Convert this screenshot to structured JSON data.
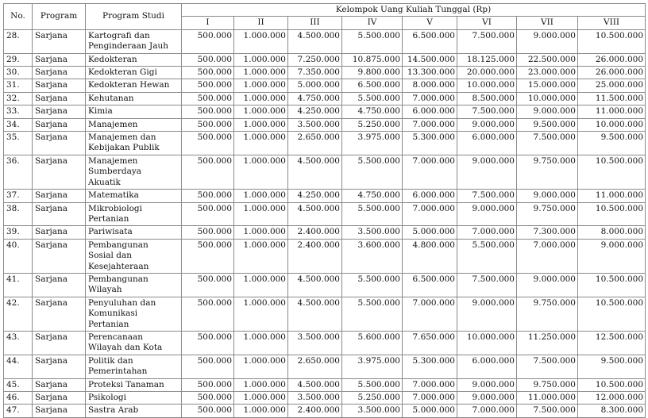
{
  "header": {
    "no": "No.",
    "program": "Program",
    "program_studi": "Program Studi",
    "group_title": "Kelompok Uang Kuliah Tunggal (Rp)",
    "groups": [
      "I",
      "II",
      "III",
      "IV",
      "V",
      "VI",
      "VII",
      "VIII"
    ]
  },
  "rows": [
    {
      "no": "28.",
      "program": "Sarjana",
      "studi": [
        "Kartografi dan",
        "Penginderaan Jauh"
      ],
      "values": [
        "500.000",
        "1.000.000",
        "4.500.000",
        "5.500.000",
        "6.500.000",
        "7.500.000",
        "9.000.000",
        "10.500.000"
      ]
    },
    {
      "no": "29.",
      "program": "Sarjana",
      "studi": [
        "Kedokteran"
      ],
      "values": [
        "500.000",
        "1.000.000",
        "7.250.000",
        "10.875.000",
        "14.500.000",
        "18.125.000",
        "22.500.000",
        "26.000.000"
      ]
    },
    {
      "no": "30.",
      "program": "Sarjana",
      "studi": [
        "Kedokteran Gigi"
      ],
      "values": [
        "500.000",
        "1.000.000",
        "7.350.000",
        "9.800.000",
        "13.300.000",
        "20.000.000",
        "23.000.000",
        "26.000.000"
      ]
    },
    {
      "no": "31.",
      "program": "Sarjana",
      "studi": [
        "Kedokteran Hewan"
      ],
      "values": [
        "500.000",
        "1.000.000",
        "5.000.000",
        "6.500.000",
        "8.000.000",
        "10.000.000",
        "15.000.000",
        "25.000.000"
      ]
    },
    {
      "no": "32.",
      "program": "Sarjana",
      "studi": [
        "Kehutanan"
      ],
      "values": [
        "500.000",
        "1.000.000",
        "4.750.000",
        "5.500.000",
        "7.000.000",
        "8.500.000",
        "10.000.000",
        "11.500.000"
      ]
    },
    {
      "no": "33.",
      "program": "Sarjana",
      "studi": [
        "Kimia"
      ],
      "values": [
        "500.000",
        "1.000.000",
        "4.250.000",
        "4.750.000",
        "6.000.000",
        "7.500.000",
        "9.000.000",
        "11.000.000"
      ]
    },
    {
      "no": "34.",
      "program": "Sarjana",
      "studi": [
        "Manajemen"
      ],
      "values": [
        "500.000",
        "1.000.000",
        "3.500.000",
        "5.250.000",
        "7.000.000",
        "9.000.000",
        "9.500.000",
        "10.000.000"
      ]
    },
    {
      "no": "35.",
      "program": "Sarjana",
      "studi": [
        "Manajemen dan",
        "Kebijakan Publik"
      ],
      "values": [
        "500.000",
        "1.000.000",
        "2.650.000",
        "3.975.000",
        "5.300.000",
        "6.000.000",
        "7.500.000",
        "9.500.000"
      ]
    },
    {
      "no": "36.",
      "program": "Sarjana",
      "studi": [
        "Manajemen",
        "Sumberdaya",
        "Akuatik"
      ],
      "values": [
        "500.000",
        "1.000.000",
        "4.500.000",
        "5.500.000",
        "7.000.000",
        "9.000.000",
        "9.750.000",
        "10.500.000"
      ]
    },
    {
      "no": "37.",
      "program": "Sarjana",
      "studi": [
        "Matematika"
      ],
      "values": [
        "500.000",
        "1.000.000",
        "4.250.000",
        "4.750.000",
        "6.000.000",
        "7.500.000",
        "9.000.000",
        "11.000.000"
      ]
    },
    {
      "no": "38.",
      "program": "Sarjana",
      "studi": [
        "Mikrobiologi",
        "Pertanian"
      ],
      "values": [
        "500.000",
        "1.000.000",
        "4.500.000",
        "5.500.000",
        "7.000.000",
        "9.000.000",
        "9.750.000",
        "10.500.000"
      ]
    },
    {
      "no": "39.",
      "program": "Sarjana",
      "studi": [
        "Pariwisata"
      ],
      "values": [
        "500.000",
        "1.000.000",
        "2.400.000",
        "3.500.000",
        "5.000.000",
        "7.000.000",
        "7.300.000",
        "8.000.000"
      ]
    },
    {
      "no": "40.",
      "program": "Sarjana",
      "studi": [
        "Pembangunan",
        "Sosial dan",
        "Kesejahteraan"
      ],
      "values": [
        "500.000",
        "1.000.000",
        "2.400.000",
        "3.600.000",
        "4.800.000",
        "5.500.000",
        "7.000.000",
        "9.000.000"
      ]
    },
    {
      "no": "41.",
      "program": "Sarjana",
      "studi": [
        "Pembangunan",
        "Wilayah"
      ],
      "values": [
        "500.000",
        "1.000.000",
        "4.500.000",
        "5.500.000",
        "6.500.000",
        "7.500.000",
        "9.000.000",
        "10.500.000"
      ]
    },
    {
      "no": "42.",
      "program": "Sarjana",
      "studi": [
        "Penyuluhan dan",
        "Komunikasi",
        "Pertanian"
      ],
      "values": [
        "500.000",
        "1.000.000",
        "4.500.000",
        "5.500.000",
        "7.000.000",
        "9.000.000",
        "9.750.000",
        "10.500.000"
      ]
    },
    {
      "no": "43.",
      "program": "Sarjana",
      "studi": [
        "Perencanaan",
        "Wilayah dan Kota"
      ],
      "values": [
        "500.000",
        "1.000.000",
        "3.500.000",
        "5.600.000",
        "7.650.000",
        "10.000.000",
        "11.250.000",
        "12.500.000"
      ]
    },
    {
      "no": "44.",
      "program": "Sarjana",
      "studi": [
        "Politik dan",
        "Pemerintahan"
      ],
      "values": [
        "500.000",
        "1.000.000",
        "2.650.000",
        "3.975.000",
        "5.300.000",
        "6.000.000",
        "7.500.000",
        "9.500.000"
      ]
    },
    {
      "no": "45.",
      "program": "Sarjana",
      "studi": [
        "Proteksi Tanaman"
      ],
      "values": [
        "500.000",
        "1.000.000",
        "4.500.000",
        "5.500.000",
        "7.000.000",
        "9.000.000",
        "9.750.000",
        "10.500.000"
      ]
    },
    {
      "no": "46.",
      "program": "Sarjana",
      "studi": [
        "Psikologi"
      ],
      "values": [
        "500.000",
        "1.000.000",
        "3.500.000",
        "5.250.000",
        "7.000.000",
        "9.000.000",
        "11.000.000",
        "12.000.000"
      ]
    },
    {
      "no": "47.",
      "program": "Sarjana",
      "studi": [
        "Sastra Arab"
      ],
      "values": [
        "500.000",
        "1.000.000",
        "2.400.000",
        "3.500.000",
        "5.000.000",
        "7.000.000",
        "7.500.000",
        "8.300.000"
      ]
    }
  ]
}
